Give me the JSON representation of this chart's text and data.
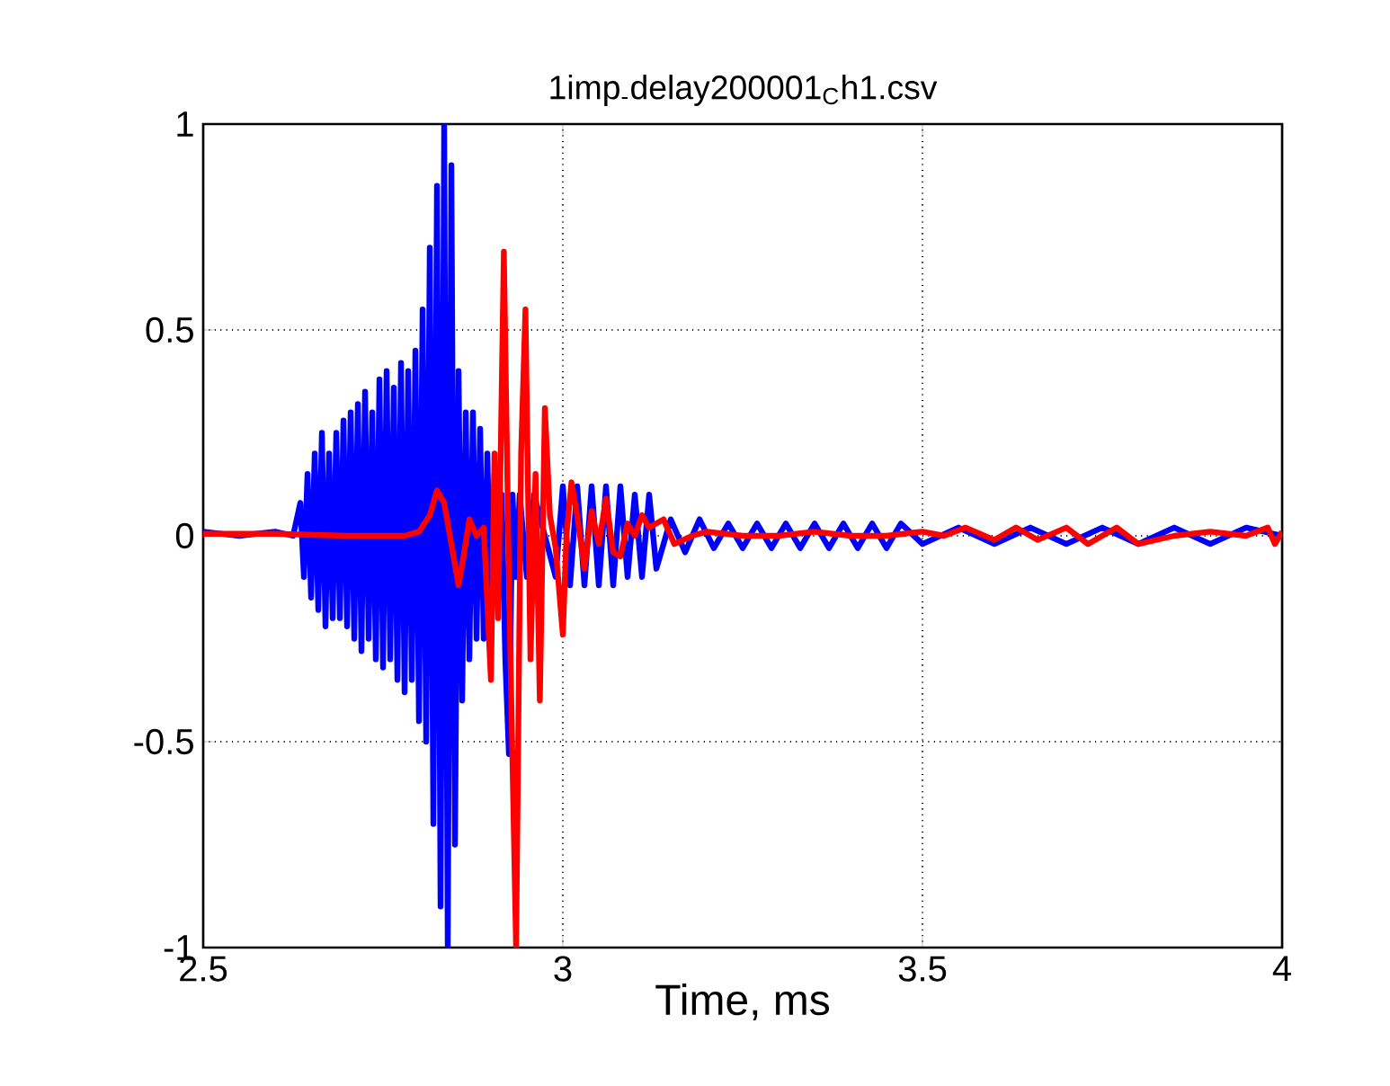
{
  "chart_data": {
    "type": "line",
    "title": "1imp$_{-}$delay200001$_{C}$h1.csv",
    "xlabel": "Time, ms",
    "xlim": [
      2.5,
      4
    ],
    "ylim": [
      -1,
      1
    ],
    "xticks": [
      2.5,
      3,
      3.5,
      4
    ],
    "yticks": [
      -1,
      -0.5,
      0,
      0.5,
      1
    ],
    "grid": true,
    "series": [
      {
        "color": "#0000ff",
        "x": [
          2.5,
          2.55,
          2.6,
          2.625,
          2.635,
          2.64,
          2.645,
          2.65,
          2.655,
          2.66,
          2.665,
          2.67,
          2.675,
          2.68,
          2.685,
          2.69,
          2.695,
          2.7,
          2.705,
          2.71,
          2.715,
          2.72,
          2.725,
          2.73,
          2.735,
          2.74,
          2.745,
          2.75,
          2.755,
          2.76,
          2.765,
          2.77,
          2.775,
          2.78,
          2.785,
          2.79,
          2.795,
          2.8,
          2.805,
          2.81,
          2.815,
          2.82,
          2.825,
          2.83,
          2.835,
          2.84,
          2.845,
          2.85,
          2.855,
          2.86,
          2.865,
          2.87,
          2.875,
          2.88,
          2.885,
          2.89,
          2.895,
          2.9,
          2.905,
          2.91,
          2.915,
          2.92,
          2.925,
          2.93,
          2.935,
          2.94,
          2.95,
          2.96,
          2.97,
          2.98,
          2.99,
          3.0,
          3.01,
          3.02,
          3.03,
          3.04,
          3.05,
          3.06,
          3.07,
          3.08,
          3.09,
          3.1,
          3.11,
          3.12,
          3.13,
          3.15,
          3.17,
          3.19,
          3.21,
          3.23,
          3.25,
          3.27,
          3.29,
          3.31,
          3.33,
          3.35,
          3.37,
          3.39,
          3.41,
          3.43,
          3.45,
          3.47,
          3.5,
          3.55,
          3.6,
          3.65,
          3.7,
          3.75,
          3.8,
          3.85,
          3.9,
          3.95,
          4.0
        ],
        "values": [
          0.01,
          0.0,
          0.01,
          0.0,
          0.08,
          -0.1,
          0.15,
          -0.15,
          0.2,
          -0.18,
          0.25,
          -0.22,
          0.2,
          -0.2,
          0.25,
          -0.2,
          0.28,
          -0.22,
          0.3,
          -0.25,
          0.32,
          -0.28,
          0.35,
          -0.25,
          0.3,
          -0.3,
          0.38,
          -0.32,
          0.4,
          -0.3,
          0.36,
          -0.35,
          0.42,
          -0.38,
          0.4,
          -0.35,
          0.45,
          -0.45,
          0.55,
          -0.5,
          0.7,
          -0.7,
          0.85,
          -0.9,
          1.0,
          -1.0,
          0.9,
          -0.75,
          0.4,
          -0.4,
          0.3,
          -0.3,
          0.3,
          -0.25,
          0.26,
          -0.25,
          0.2,
          -0.2,
          0.15,
          -0.15,
          0.1,
          -0.3,
          -0.53,
          0.1,
          -0.1,
          0.1,
          -0.1,
          0.1,
          null,
          null,
          -0.1,
          0.12,
          -0.12,
          0.12,
          -0.12,
          0.12,
          -0.12,
          0.12,
          -0.12,
          0.12,
          -0.1,
          0.1,
          -0.1,
          0.1,
          -0.08,
          0.04,
          -0.04,
          0.04,
          -0.03,
          0.03,
          -0.03,
          0.03,
          -0.03,
          0.03,
          -0.03,
          0.03,
          -0.03,
          0.03,
          -0.03,
          0.03,
          -0.03,
          0.03,
          -0.02,
          0.02,
          -0.02,
          0.02,
          -0.02,
          0.02,
          -0.02,
          0.02,
          -0.02,
          0.02,
          0.0
        ]
      },
      {
        "color": "#ff0000",
        "x": [
          2.5,
          2.6,
          2.7,
          2.78,
          2.8,
          2.815,
          2.825,
          2.835,
          2.845,
          2.855,
          2.862,
          2.87,
          2.88,
          2.89,
          2.9,
          2.905,
          2.91,
          2.918,
          2.925,
          2.935,
          2.942,
          2.948,
          2.955,
          2.962,
          2.968,
          2.975,
          2.982,
          2.99,
          3.0,
          3.005,
          3.012,
          3.02,
          3.03,
          3.04,
          3.05,
          3.06,
          3.07,
          3.08,
          3.09,
          3.1,
          3.11,
          3.12,
          3.14,
          3.155,
          3.18,
          3.2,
          3.25,
          3.3,
          3.35,
          3.4,
          3.45,
          3.5,
          3.53,
          3.56,
          3.6,
          3.63,
          3.66,
          3.7,
          3.73,
          3.77,
          3.8,
          3.85,
          3.9,
          3.95,
          3.98,
          3.99,
          4.0
        ],
        "values": [
          0.005,
          0.005,
          0.0,
          0.0,
          0.01,
          0.05,
          0.11,
          0.08,
          -0.02,
          -0.12,
          -0.05,
          0.04,
          0.0,
          0.02,
          -0.35,
          0.2,
          -0.2,
          0.69,
          -0.1,
          -1.0,
          0.2,
          0.55,
          -0.3,
          0.15,
          -0.4,
          0.31,
          0.05,
          -0.03,
          -0.24,
          0.0,
          0.13,
          0.05,
          -0.08,
          0.06,
          -0.02,
          0.09,
          -0.04,
          -0.05,
          0.03,
          0.0,
          0.05,
          0.02,
          0.04,
          -0.02,
          0.0,
          0.01,
          0.0,
          0.0,
          0.01,
          0.0,
          0.0,
          0.01,
          0.0,
          0.02,
          -0.01,
          0.02,
          -0.01,
          0.02,
          -0.02,
          0.02,
          -0.02,
          0.0,
          0.01,
          0.0,
          0.02,
          -0.02,
          0.01
        ]
      }
    ]
  }
}
